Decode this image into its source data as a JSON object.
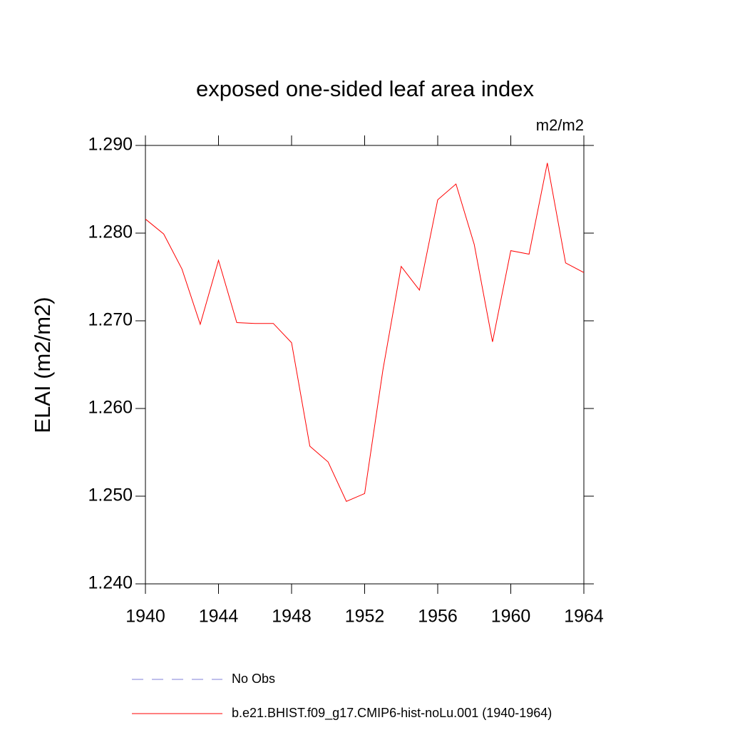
{
  "chart_data": {
    "type": "line",
    "title": "exposed one-sided leaf area index",
    "units": "m2/m2",
    "y_label": "ELAI  (m2/m2)",
    "x": [
      1940,
      1941,
      1942,
      1943,
      1944,
      1945,
      1946,
      1947,
      1948,
      1949,
      1950,
      1951,
      1952,
      1953,
      1954,
      1955,
      1956,
      1957,
      1958,
      1959,
      1960,
      1961,
      1962,
      1963,
      1964
    ],
    "series": [
      {
        "name": "No Obs",
        "color": "#7f7fd9",
        "dashed": true,
        "values": [
          null,
          null,
          null,
          null,
          null,
          null,
          null,
          null,
          null,
          null,
          null,
          null,
          null,
          null,
          null,
          null,
          null,
          null,
          null,
          null,
          null,
          null,
          null,
          null,
          null
        ]
      },
      {
        "name": "b.e21.BHIST.f09_g17.CMIP6-hist-noLu.001 (1940-1964)",
        "color": "#ff0000",
        "dashed": false,
        "values": [
          1.2816,
          1.2799,
          1.2759,
          1.2696,
          1.2769,
          1.2698,
          1.2697,
          1.2697,
          1.2675,
          1.2557,
          1.2539,
          1.2494,
          1.2503,
          1.2644,
          1.2762,
          1.2735,
          1.2838,
          1.2856,
          1.2787,
          1.2676,
          1.278,
          1.2776,
          1.288,
          1.2766,
          1.2755
        ]
      }
    ],
    "xlim": [
      1940,
      1964
    ],
    "xticks": [
      1940,
      1944,
      1948,
      1952,
      1956,
      1960,
      1964
    ],
    "ylim": [
      1.24,
      1.29
    ],
    "yticks": [
      {
        "value": 1.24,
        "label": "1.240"
      },
      {
        "value": 1.25,
        "label": "1.250"
      },
      {
        "value": 1.26,
        "label": "1.260"
      },
      {
        "value": 1.27,
        "label": "1.270"
      },
      {
        "value": 1.28,
        "label": "1.280"
      },
      {
        "value": 1.29,
        "label": "1.290"
      }
    ],
    "grid": false
  }
}
